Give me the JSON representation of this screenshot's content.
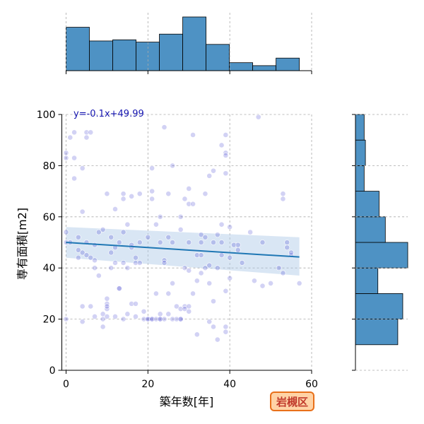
{
  "chart_data": {
    "type": "scatter",
    "xlabel": "築年数[年]",
    "ylabel": "専有面積[m2]",
    "xlim": [
      0,
      60
    ],
    "ylim": [
      0,
      100
    ],
    "x_ticks": [
      "0",
      "20",
      "40",
      "60"
    ],
    "y_ticks": [
      "0",
      "20",
      "40",
      "60",
      "80",
      "100"
    ],
    "grid": true,
    "annotation": "y=-0.1x+49.99",
    "badge": "岩槻区",
    "colors": {
      "points": "#3333cc",
      "fit_line": "#1f77b4",
      "confidence_band": "#aac8e6",
      "histogram": "#4e92c4",
      "annotation": "#1515b0",
      "badge_fill": "#ffd3a6",
      "badge_border": "#e8701a",
      "badge_text": "#c0392b"
    },
    "regression": {
      "slope": -0.1,
      "intercept": 49.99,
      "x_range": [
        0,
        57
      ],
      "ci_start": [
        44,
        56
      ],
      "ci_end": [
        37,
        52
      ]
    },
    "points": [
      [
        0,
        50
      ],
      [
        0,
        85
      ],
      [
        0,
        83
      ],
      [
        1,
        91
      ],
      [
        0,
        54
      ],
      [
        0,
        20
      ],
      [
        1,
        50
      ],
      [
        2,
        93
      ],
      [
        2,
        75
      ],
      [
        2,
        83
      ],
      [
        3,
        44
      ],
      [
        3,
        47
      ],
      [
        3,
        52
      ],
      [
        4,
        46
      ],
      [
        4,
        79
      ],
      [
        4,
        62
      ],
      [
        4,
        25
      ],
      [
        4,
        19
      ],
      [
        5,
        93
      ],
      [
        5,
        91
      ],
      [
        5,
        45
      ],
      [
        5,
        50
      ],
      [
        6,
        93
      ],
      [
        6,
        25
      ],
      [
        6,
        44
      ],
      [
        7,
        49
      ],
      [
        7,
        40
      ],
      [
        7,
        43
      ],
      [
        7,
        21
      ],
      [
        8,
        54
      ],
      [
        8,
        37
      ],
      [
        9,
        55
      ],
      [
        9,
        20
      ],
      [
        9,
        17
      ],
      [
        9,
        22
      ],
      [
        10,
        28
      ],
      [
        10,
        21
      ],
      [
        10,
        24
      ],
      [
        10,
        26
      ],
      [
        10,
        69
      ],
      [
        10,
        25
      ],
      [
        11,
        40
      ],
      [
        11,
        46
      ],
      [
        11,
        52
      ],
      [
        12,
        63
      ],
      [
        12,
        42
      ],
      [
        12,
        48
      ],
      [
        12,
        21
      ],
      [
        13,
        32
      ],
      [
        13,
        32
      ],
      [
        13,
        50
      ],
      [
        14,
        69
      ],
      [
        14,
        67
      ],
      [
        14,
        54
      ],
      [
        14,
        42
      ],
      [
        14,
        20
      ],
      [
        15,
        57
      ],
      [
        15,
        22
      ],
      [
        15,
        40
      ],
      [
        16,
        48
      ],
      [
        16,
        49
      ],
      [
        16,
        68
      ],
      [
        16,
        26
      ],
      [
        17,
        26
      ],
      [
        17,
        42
      ],
      [
        17,
        44
      ],
      [
        17,
        21
      ],
      [
        18,
        69
      ],
      [
        18,
        42
      ],
      [
        18,
        50
      ],
      [
        19,
        23
      ],
      [
        19,
        20
      ],
      [
        20,
        20
      ],
      [
        20,
        20
      ],
      [
        20,
        52
      ],
      [
        21,
        70
      ],
      [
        21,
        67
      ],
      [
        21,
        79
      ],
      [
        21,
        20
      ],
      [
        21,
        20
      ],
      [
        22,
        30
      ],
      [
        22,
        57
      ],
      [
        22,
        20
      ],
      [
        23,
        60
      ],
      [
        23,
        50
      ],
      [
        23,
        20
      ],
      [
        23,
        22
      ],
      [
        23,
        20
      ],
      [
        24,
        95
      ],
      [
        24,
        43
      ],
      [
        24,
        42
      ],
      [
        24,
        20
      ],
      [
        25,
        52
      ],
      [
        25,
        69
      ],
      [
        25,
        30
      ],
      [
        25,
        22
      ],
      [
        26,
        80
      ],
      [
        26,
        34
      ],
      [
        26,
        50
      ],
      [
        26,
        20
      ],
      [
        27,
        25
      ],
      [
        27,
        20
      ],
      [
        28,
        20
      ],
      [
        28,
        55
      ],
      [
        28,
        24
      ],
      [
        28,
        60
      ],
      [
        28,
        20
      ],
      [
        29,
        25
      ],
      [
        29,
        67
      ],
      [
        29,
        24
      ],
      [
        29,
        40
      ],
      [
        30,
        25
      ],
      [
        30,
        23
      ],
      [
        30,
        71
      ],
      [
        30,
        65
      ],
      [
        30,
        50
      ],
      [
        30,
        39
      ],
      [
        31,
        92
      ],
      [
        31,
        30
      ],
      [
        31,
        65
      ],
      [
        32,
        45
      ],
      [
        32,
        35
      ],
      [
        32,
        14
      ],
      [
        33,
        53
      ],
      [
        33,
        38
      ],
      [
        33,
        45
      ],
      [
        33,
        50
      ],
      [
        34,
        69
      ],
      [
        34,
        52
      ],
      [
        34,
        40
      ],
      [
        35,
        76
      ],
      [
        35,
        41
      ],
      [
        35,
        34
      ],
      [
        35,
        19
      ],
      [
        36,
        78
      ],
      [
        36,
        27
      ],
      [
        36,
        50
      ],
      [
        36,
        17
      ],
      [
        37,
        53
      ],
      [
        37,
        40
      ],
      [
        37,
        12
      ],
      [
        38,
        88
      ],
      [
        38,
        57
      ],
      [
        38,
        45
      ],
      [
        38,
        50
      ],
      [
        39,
        92
      ],
      [
        39,
        85
      ],
      [
        39,
        84
      ],
      [
        39,
        77
      ],
      [
        39,
        31
      ],
      [
        39,
        17
      ],
      [
        39,
        15
      ],
      [
        40,
        56
      ],
      [
        40,
        44
      ],
      [
        40,
        36
      ],
      [
        41,
        49
      ],
      [
        42,
        47
      ],
      [
        42,
        49
      ],
      [
        43,
        42
      ],
      [
        45,
        54
      ],
      [
        46,
        35
      ],
      [
        47,
        99
      ],
      [
        48,
        33
      ],
      [
        48,
        50
      ],
      [
        50,
        34
      ],
      [
        52,
        40
      ],
      [
        53,
        38
      ],
      [
        53,
        69
      ],
      [
        53,
        67
      ],
      [
        54,
        50
      ],
      [
        54,
        48
      ],
      [
        55,
        45
      ],
      [
        55,
        46
      ],
      [
        57,
        34
      ]
    ],
    "hist_x": {
      "bin_edges": [
        0,
        5.7,
        11.4,
        17.1,
        22.8,
        28.5,
        34.2,
        39.9,
        45.6,
        51.3,
        57
      ],
      "counts": [
        19,
        13,
        13.5,
        12.5,
        16,
        23.5,
        11.5,
        3.5,
        2.2,
        5.5
      ]
    },
    "hist_y": {
      "bin_edges": [
        10,
        20,
        30,
        40,
        50,
        60,
        70,
        80,
        90,
        100
      ],
      "counts": [
        17,
        19,
        9,
        21,
        12,
        9.5,
        3.5,
        4,
        3.5
      ]
    }
  }
}
